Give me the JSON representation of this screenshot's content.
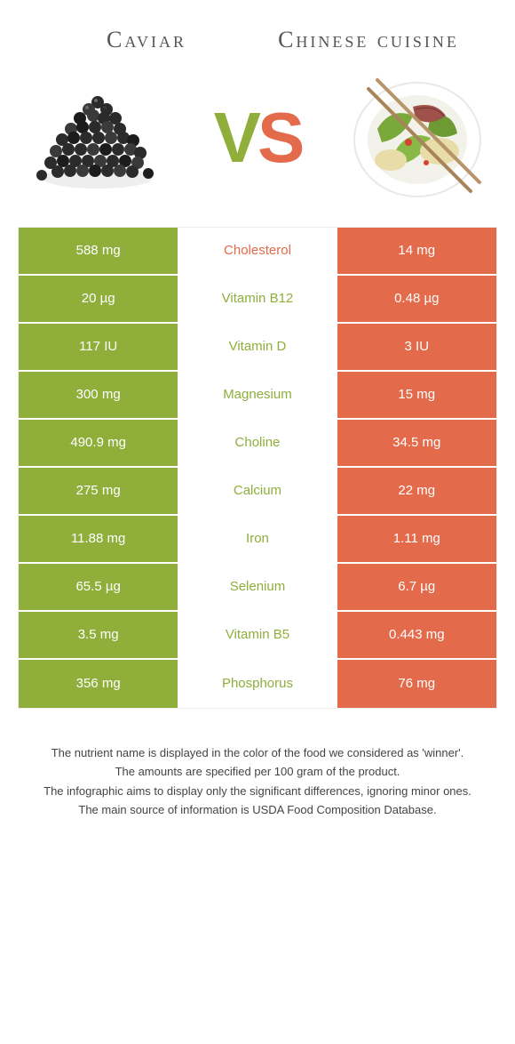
{
  "header": {
    "left_title": "Caviar",
    "right_title": "Chinese cuisine",
    "vs_v": "V",
    "vs_s": "S"
  },
  "colors": {
    "left_bg": "#8fae3a",
    "right_bg": "#e36a4a",
    "left_text": "#8fae3a",
    "right_text": "#e36a4a",
    "cell_text": "#ffffff"
  },
  "rows": [
    {
      "label": "Cholesterol",
      "left": "588 mg",
      "right": "14 mg",
      "winner": "right"
    },
    {
      "label": "Vitamin B12",
      "left": "20 µg",
      "right": "0.48 µg",
      "winner": "left"
    },
    {
      "label": "Vitamin D",
      "left": "117 IU",
      "right": "3 IU",
      "winner": "left"
    },
    {
      "label": "Magnesium",
      "left": "300 mg",
      "right": "15 mg",
      "winner": "left"
    },
    {
      "label": "Choline",
      "left": "490.9 mg",
      "right": "34.5 mg",
      "winner": "left"
    },
    {
      "label": "Calcium",
      "left": "275 mg",
      "right": "22 mg",
      "winner": "left"
    },
    {
      "label": "Iron",
      "left": "11.88 mg",
      "right": "1.11 mg",
      "winner": "left"
    },
    {
      "label": "Selenium",
      "left": "65.5 µg",
      "right": "6.7 µg",
      "winner": "left"
    },
    {
      "label": "Vitamin B5",
      "left": "3.5 mg",
      "right": "0.443 mg",
      "winner": "left"
    },
    {
      "label": "Phosphorus",
      "left": "356 mg",
      "right": "76 mg",
      "winner": "left"
    }
  ],
  "footnotes": [
    "The nutrient name is displayed in the color of the food we considered as 'winner'.",
    "The amounts are specified per 100 gram of the product.",
    "The infographic aims to display only the significant differences, ignoring minor ones.",
    "The main source of information is USDA Food Composition Database."
  ]
}
